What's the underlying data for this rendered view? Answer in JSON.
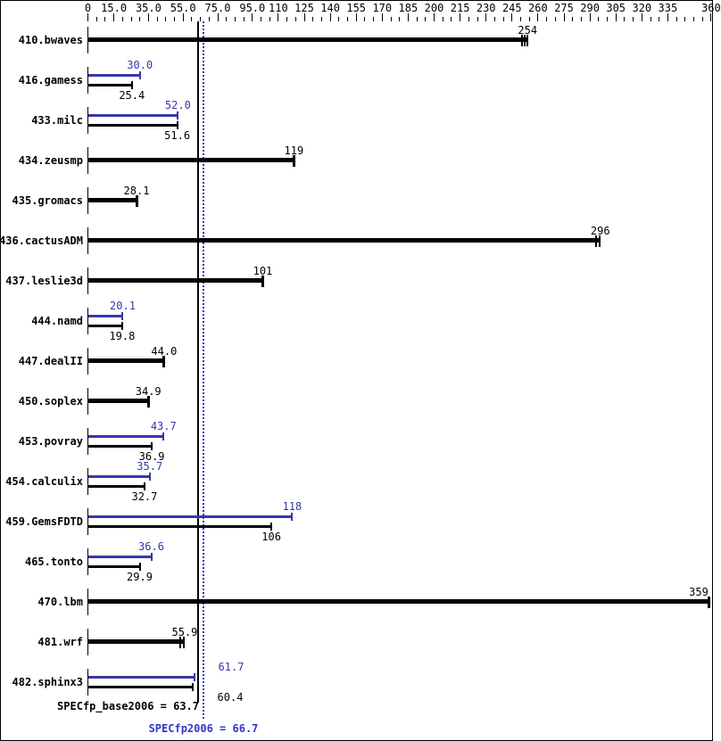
{
  "chart_data": {
    "type": "bar",
    "orientation": "horizontal",
    "x_axis": {
      "xlim": [
        0,
        360
      ],
      "minor_step": 5,
      "ticks": [
        {
          "v": 0,
          "label": "0"
        },
        {
          "v": 15,
          "label": "15.0"
        },
        {
          "v": 35,
          "label": "35.0"
        },
        {
          "v": 55,
          "label": "55.0"
        },
        {
          "v": 75,
          "label": "75.0"
        },
        {
          "v": 95,
          "label": "95.0"
        },
        {
          "v": 110,
          "label": "110"
        },
        {
          "v": 125,
          "label": "125"
        },
        {
          "v": 140,
          "label": "140"
        },
        {
          "v": 155,
          "label": "155"
        },
        {
          "v": 170,
          "label": "170"
        },
        {
          "v": 185,
          "label": "185"
        },
        {
          "v": 200,
          "label": "200"
        },
        {
          "v": 215,
          "label": "215"
        },
        {
          "v": 230,
          "label": "230"
        },
        {
          "v": 245,
          "label": "245"
        },
        {
          "v": 260,
          "label": "260"
        },
        {
          "v": 275,
          "label": "275"
        },
        {
          "v": 290,
          "label": "290"
        },
        {
          "v": 305,
          "label": "305"
        },
        {
          "v": 320,
          "label": "320"
        },
        {
          "v": 335,
          "label": "335"
        },
        {
          "v": 360,
          "label": "360"
        }
      ]
    },
    "benchmarks": [
      {
        "name": "410.bwaves",
        "base": 254,
        "base_label": "254",
        "peak": null,
        "peak_label": null,
        "end_marks": 3
      },
      {
        "name": "416.gamess",
        "base": 25.4,
        "base_label": "25.4",
        "peak": 30.0,
        "peak_label": "30.0",
        "end_marks": 1
      },
      {
        "name": "433.milc",
        "base": 51.6,
        "base_label": "51.6",
        "peak": 52.0,
        "peak_label": "52.0",
        "end_marks": 1
      },
      {
        "name": "434.zeusmp",
        "base": 119,
        "base_label": "119",
        "peak": null,
        "peak_label": null,
        "end_marks": 1
      },
      {
        "name": "435.gromacs",
        "base": 28.1,
        "base_label": "28.1",
        "peak": null,
        "peak_label": null,
        "end_marks": 1
      },
      {
        "name": "436.cactusADM",
        "base": 296,
        "base_label": "296",
        "peak": null,
        "peak_label": null,
        "end_marks": 2
      },
      {
        "name": "437.leslie3d",
        "base": 101,
        "base_label": "101",
        "peak": null,
        "peak_label": null,
        "end_marks": 1
      },
      {
        "name": "444.namd",
        "base": 19.8,
        "base_label": "19.8",
        "peak": 20.1,
        "peak_label": "20.1",
        "end_marks": 1
      },
      {
        "name": "447.dealII",
        "base": 44.0,
        "base_label": "44.0",
        "peak": null,
        "peak_label": null,
        "end_marks": 1
      },
      {
        "name": "450.soplex",
        "base": 34.9,
        "base_label": "34.9",
        "peak": null,
        "peak_label": null,
        "end_marks": 1
      },
      {
        "name": "453.povray",
        "base": 36.9,
        "base_label": "36.9",
        "peak": 43.7,
        "peak_label": "43.7",
        "end_marks": 1
      },
      {
        "name": "454.calculix",
        "base": 32.7,
        "base_label": "32.7",
        "peak": 35.7,
        "peak_label": "35.7",
        "end_marks": 1
      },
      {
        "name": "459.GemsFDTD",
        "base": 106,
        "base_label": "106",
        "peak": 118,
        "peak_label": "118",
        "end_marks": 1
      },
      {
        "name": "465.tonto",
        "base": 29.9,
        "base_label": "29.9",
        "peak": 36.6,
        "peak_label": "36.6",
        "end_marks": 1
      },
      {
        "name": "470.lbm",
        "base": 359,
        "base_label": "359",
        "peak": null,
        "peak_label": null,
        "end_marks": 1,
        "base_label_x": 782
      },
      {
        "name": "481.wrf",
        "base": 55.9,
        "base_label": "55.9",
        "peak": null,
        "peak_label": null,
        "end_marks": 2
      },
      {
        "name": "482.sphinx3",
        "base": 60.4,
        "base_label": "60.4",
        "peak": 61.7,
        "peak_label": "61.7",
        "end_marks": 1,
        "base_label_x": 257,
        "peak_label_x": 258
      }
    ],
    "base_mean": 63.7,
    "peak_mean": 66.7,
    "base_summary": "SPECfp_base2006 = 63.7",
    "peak_summary": "SPECfp2006 = 66.7",
    "colors": {
      "base": "#000000",
      "peak": "#3737aa",
      "peak_line": "#3333cc"
    },
    "legend": "none",
    "grid": false
  }
}
